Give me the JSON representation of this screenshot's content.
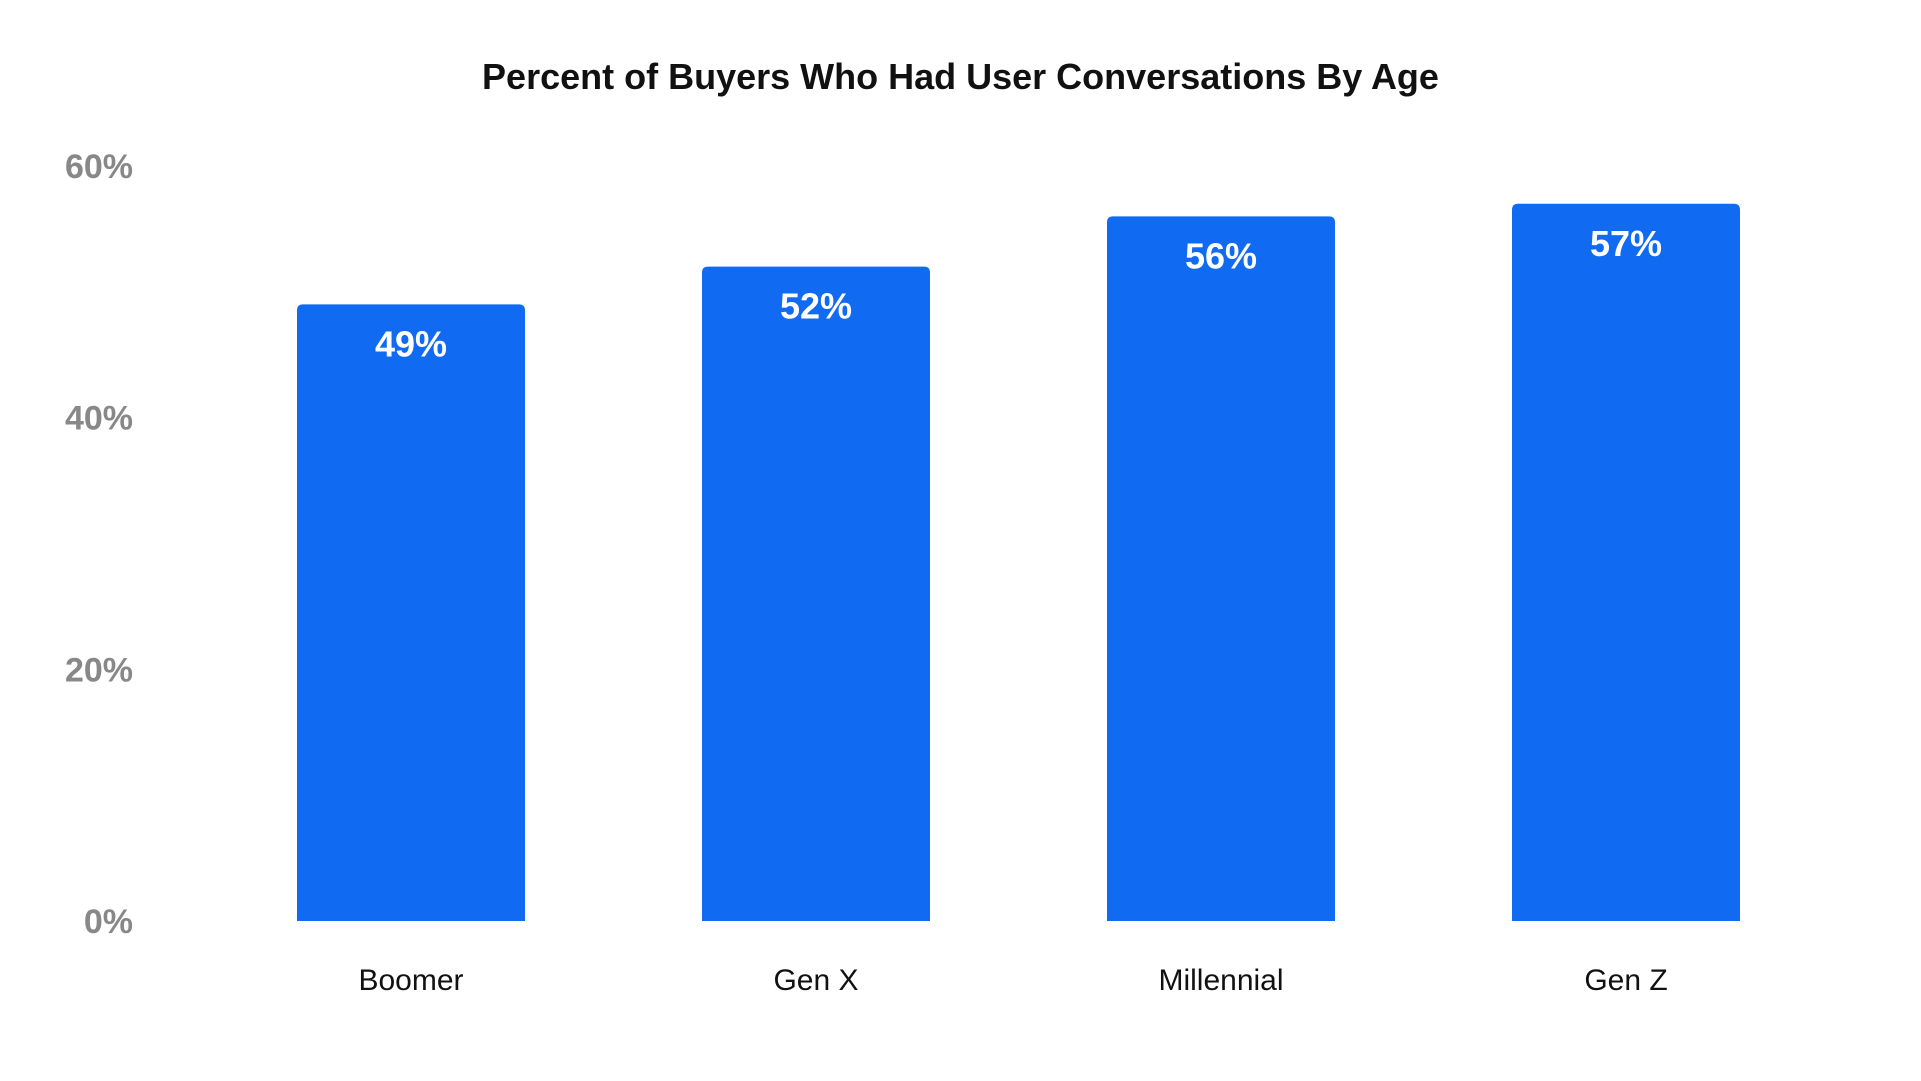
{
  "chart_data": {
    "type": "bar",
    "title": "Percent of Buyers Who Had User Conversations By Age",
    "categories": [
      "Boomer",
      "Gen X",
      "Millennial",
      "Gen Z"
    ],
    "values": [
      49,
      52,
      56,
      57
    ],
    "data_labels": [
      "49%",
      "52%",
      "56%",
      "57%"
    ],
    "xlabel": "",
    "ylabel": "",
    "ylim": [
      0,
      60
    ],
    "yticks": [
      0,
      20,
      40,
      60
    ],
    "ytick_labels": [
      "0%",
      "20%",
      "40%",
      "60%"
    ],
    "grid": false,
    "legend": "none",
    "bar_color": "#116BF2",
    "tick_color": "#888888"
  }
}
